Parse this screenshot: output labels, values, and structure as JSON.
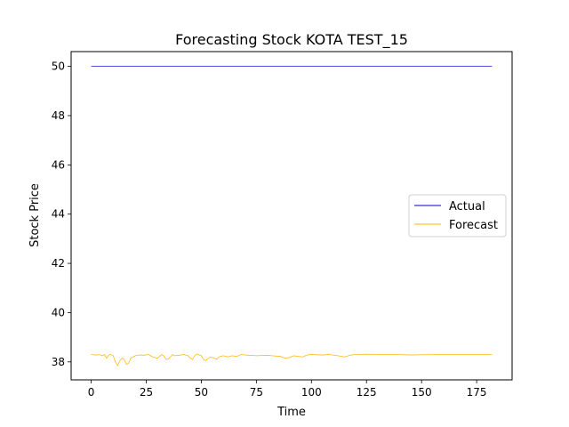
{
  "chart_data": {
    "type": "line",
    "title": "Forecasting Stock KOTA TEST_15",
    "xlabel": "Time",
    "ylabel": "Stock Price",
    "xlim": [
      -9.1,
      191.1
    ],
    "ylim": [
      37.27,
      50.6
    ],
    "x_ticks": [
      0,
      25,
      50,
      75,
      100,
      125,
      150,
      175
    ],
    "y_ticks": [
      38,
      40,
      42,
      44,
      46,
      48,
      50
    ],
    "grid": false,
    "legend_position": "center-right",
    "series": [
      {
        "name": "Actual",
        "color": "#0000cc",
        "points": [
          [
            0,
            50.0
          ],
          [
            182,
            50.0
          ]
        ]
      },
      {
        "name": "Forecast",
        "color": "#ffb300",
        "points": [
          [
            0,
            38.3
          ],
          [
            2,
            38.28
          ],
          [
            4,
            38.29
          ],
          [
            5,
            38.25
          ],
          [
            6,
            38.3
          ],
          [
            7,
            38.15
          ],
          [
            8,
            38.28
          ],
          [
            9,
            38.3
          ],
          [
            10,
            38.25
          ],
          [
            11,
            38.0
          ],
          [
            12,
            37.85
          ],
          [
            13,
            38.05
          ],
          [
            14,
            38.15
          ],
          [
            15,
            38.1
          ],
          [
            16,
            37.9
          ],
          [
            17,
            37.95
          ],
          [
            18,
            38.15
          ],
          [
            20,
            38.25
          ],
          [
            22,
            38.28
          ],
          [
            24,
            38.27
          ],
          [
            26,
            38.3
          ],
          [
            28,
            38.2
          ],
          [
            30,
            38.15
          ],
          [
            31,
            38.22
          ],
          [
            32,
            38.3
          ],
          [
            33,
            38.25
          ],
          [
            34,
            38.1
          ],
          [
            35,
            38.12
          ],
          [
            36,
            38.2
          ],
          [
            37,
            38.3
          ],
          [
            38,
            38.25
          ],
          [
            40,
            38.27
          ],
          [
            42,
            38.3
          ],
          [
            44,
            38.25
          ],
          [
            45,
            38.15
          ],
          [
            46,
            38.1
          ],
          [
            47,
            38.25
          ],
          [
            48,
            38.32
          ],
          [
            50,
            38.25
          ],
          [
            51,
            38.1
          ],
          [
            52,
            38.05
          ],
          [
            54,
            38.2
          ],
          [
            56,
            38.15
          ],
          [
            57,
            38.1
          ],
          [
            58,
            38.2
          ],
          [
            60,
            38.25
          ],
          [
            62,
            38.2
          ],
          [
            64,
            38.25
          ],
          [
            66,
            38.22
          ],
          [
            68,
            38.3
          ],
          [
            70,
            38.28
          ],
          [
            75,
            38.25
          ],
          [
            80,
            38.27
          ],
          [
            82,
            38.25
          ],
          [
            86,
            38.22
          ],
          [
            88,
            38.15
          ],
          [
            90,
            38.18
          ],
          [
            92,
            38.25
          ],
          [
            94,
            38.22
          ],
          [
            96,
            38.2
          ],
          [
            98,
            38.28
          ],
          [
            100,
            38.3
          ],
          [
            105,
            38.28
          ],
          [
            108,
            38.3
          ],
          [
            112,
            38.25
          ],
          [
            115,
            38.2
          ],
          [
            118,
            38.28
          ],
          [
            120,
            38.3
          ],
          [
            125,
            38.31
          ],
          [
            130,
            38.3
          ],
          [
            140,
            38.3
          ],
          [
            145,
            38.28
          ],
          [
            150,
            38.29
          ],
          [
            160,
            38.3
          ],
          [
            170,
            38.3
          ],
          [
            182,
            38.3
          ]
        ]
      }
    ]
  }
}
